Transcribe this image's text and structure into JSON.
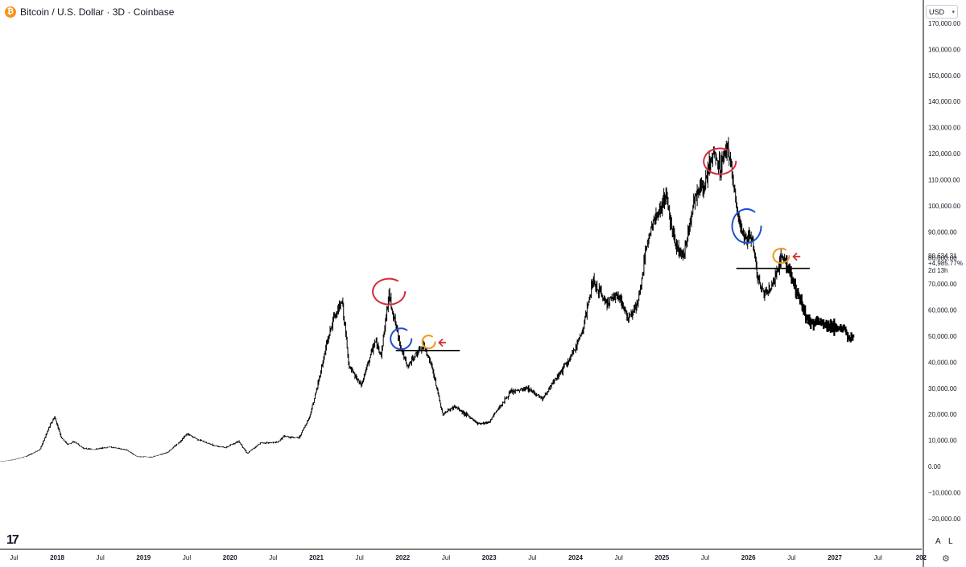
{
  "header": {
    "symbol_icon": "bitcoin-icon",
    "title": "Bitcoin / U.S. Dollar · 3D · Coinbase"
  },
  "currency_select": {
    "value": "USD",
    "icon": "chevron-down-icon"
  },
  "price_readout": {
    "price": "80,634.31",
    "change": "+4,985.77%",
    "countdown": "2d 13h"
  },
  "buttons": {
    "auto_label": "A",
    "log_label": "L",
    "settings_icon": "gear-icon",
    "logo_text": "17"
  },
  "colors": {
    "candles": "#000000",
    "red_annotation": "#d62d3a",
    "blue_annotation": "#1f4fd1",
    "orange_annotation": "#f0961e",
    "axis_line": "#000000"
  },
  "chart_data": {
    "type": "line",
    "title": "",
    "xlabel": "",
    "ylabel": "",
    "ylim": [
      -25000,
      175000
    ],
    "xlim": [
      2017.32,
      2028.0
    ],
    "y_ticks": [
      "170,000.00",
      "160,000.00",
      "150,000.00",
      "140,000.00",
      "130,000.00",
      "120,000.00",
      "110,000.00",
      "100,000.00",
      "90,000.00",
      "80,000.00",
      "70,000.00",
      "60,000.00",
      "50,000.00",
      "40,000.00",
      "30,000.00",
      "20,000.00",
      "10,000.00",
      "0.00",
      "−10,000.00",
      "−20,000.00"
    ],
    "y_tick_values": [
      170000,
      160000,
      150000,
      140000,
      130000,
      120000,
      110000,
      100000,
      90000,
      80000,
      70000,
      60000,
      50000,
      40000,
      30000,
      20000,
      10000,
      0,
      -10000,
      -20000
    ],
    "x_ticks": [
      {
        "t": 2017.5,
        "label": "Jul",
        "year": false
      },
      {
        "t": 2018.0,
        "label": "2018",
        "year": true
      },
      {
        "t": 2018.5,
        "label": "Jul",
        "year": false
      },
      {
        "t": 2019.0,
        "label": "2019",
        "year": true
      },
      {
        "t": 2019.5,
        "label": "Jul",
        "year": false
      },
      {
        "t": 2020.0,
        "label": "2020",
        "year": true
      },
      {
        "t": 2020.5,
        "label": "Jul",
        "year": false
      },
      {
        "t": 2021.0,
        "label": "2021",
        "year": true
      },
      {
        "t": 2021.5,
        "label": "Jul",
        "year": false
      },
      {
        "t": 2022.0,
        "label": "2022",
        "year": true
      },
      {
        "t": 2022.5,
        "label": "Jul",
        "year": false
      },
      {
        "t": 2023.0,
        "label": "2023",
        "year": true
      },
      {
        "t": 2023.5,
        "label": "Jul",
        "year": false
      },
      {
        "t": 2024.0,
        "label": "2024",
        "year": true
      },
      {
        "t": 2024.5,
        "label": "Jul",
        "year": false
      },
      {
        "t": 2025.0,
        "label": "2025",
        "year": true
      },
      {
        "t": 2025.5,
        "label": "Jul",
        "year": false
      },
      {
        "t": 2026.0,
        "label": "2026",
        "year": true
      },
      {
        "t": 2026.5,
        "label": "Jul",
        "year": false
      },
      {
        "t": 2027.0,
        "label": "2027",
        "year": true
      },
      {
        "t": 2027.5,
        "label": "Jul",
        "year": false
      },
      {
        "t": 2028.0,
        "label": "202",
        "year": true
      }
    ],
    "series": [
      {
        "values": [
          {
            "t": 2017.32,
            "y": 1800
          },
          {
            "t": 2017.5,
            "y": 2600
          },
          {
            "t": 2017.65,
            "y": 4000
          },
          {
            "t": 2017.8,
            "y": 6500
          },
          {
            "t": 2017.92,
            "y": 16000
          },
          {
            "t": 2017.97,
            "y": 19000
          },
          {
            "t": 2018.05,
            "y": 11000
          },
          {
            "t": 2018.12,
            "y": 8500
          },
          {
            "t": 2018.2,
            "y": 9500
          },
          {
            "t": 2018.3,
            "y": 7000
          },
          {
            "t": 2018.42,
            "y": 6500
          },
          {
            "t": 2018.6,
            "y": 7500
          },
          {
            "t": 2018.8,
            "y": 6400
          },
          {
            "t": 2018.92,
            "y": 3800
          },
          {
            "t": 2019.1,
            "y": 3600
          },
          {
            "t": 2019.28,
            "y": 5500
          },
          {
            "t": 2019.42,
            "y": 9500
          },
          {
            "t": 2019.5,
            "y": 12500
          },
          {
            "t": 2019.62,
            "y": 10500
          },
          {
            "t": 2019.8,
            "y": 8200
          },
          {
            "t": 2019.95,
            "y": 7200
          },
          {
            "t": 2020.1,
            "y": 9800
          },
          {
            "t": 2020.2,
            "y": 5000
          },
          {
            "t": 2020.35,
            "y": 9000
          },
          {
            "t": 2020.55,
            "y": 9200
          },
          {
            "t": 2020.62,
            "y": 11500
          },
          {
            "t": 2020.8,
            "y": 11000
          },
          {
            "t": 2020.92,
            "y": 19000
          },
          {
            "t": 2021.0,
            "y": 29000
          },
          {
            "t": 2021.12,
            "y": 47000
          },
          {
            "t": 2021.2,
            "y": 57000
          },
          {
            "t": 2021.3,
            "y": 63000
          },
          {
            "t": 2021.38,
            "y": 38000
          },
          {
            "t": 2021.52,
            "y": 31000
          },
          {
            "t": 2021.6,
            "y": 40000
          },
          {
            "t": 2021.68,
            "y": 48000
          },
          {
            "t": 2021.75,
            "y": 43000
          },
          {
            "t": 2021.84,
            "y": 66000
          },
          {
            "t": 2021.9,
            "y": 57000
          },
          {
            "t": 2021.97,
            "y": 47000
          },
          {
            "t": 2022.05,
            "y": 38000
          },
          {
            "t": 2022.15,
            "y": 43000
          },
          {
            "t": 2022.25,
            "y": 46000
          },
          {
            "t": 2022.33,
            "y": 39000
          },
          {
            "t": 2022.4,
            "y": 29000
          },
          {
            "t": 2022.46,
            "y": 20000
          },
          {
            "t": 2022.6,
            "y": 23000
          },
          {
            "t": 2022.75,
            "y": 19500
          },
          {
            "t": 2022.87,
            "y": 16500
          },
          {
            "t": 2023.0,
            "y": 17000
          },
          {
            "t": 2023.1,
            "y": 22000
          },
          {
            "t": 2023.25,
            "y": 28500
          },
          {
            "t": 2023.45,
            "y": 30000
          },
          {
            "t": 2023.62,
            "y": 26000
          },
          {
            "t": 2023.8,
            "y": 35000
          },
          {
            "t": 2023.95,
            "y": 42000
          },
          {
            "t": 2024.08,
            "y": 52000
          },
          {
            "t": 2024.2,
            "y": 71000
          },
          {
            "t": 2024.35,
            "y": 63000
          },
          {
            "t": 2024.5,
            "y": 66000
          },
          {
            "t": 2024.6,
            "y": 57000
          },
          {
            "t": 2024.72,
            "y": 62000
          },
          {
            "t": 2024.85,
            "y": 90000
          },
          {
            "t": 2024.95,
            "y": 97000
          },
          {
            "t": 2025.05,
            "y": 104000
          },
          {
            "t": 2025.15,
            "y": 86000
          },
          {
            "t": 2025.25,
            "y": 80000
          },
          {
            "t": 2025.38,
            "y": 104000
          },
          {
            "t": 2025.5,
            "y": 108000
          },
          {
            "t": 2025.58,
            "y": 120000
          },
          {
            "t": 2025.68,
            "y": 115000
          },
          {
            "t": 2025.76,
            "y": 124000
          },
          {
            "t": 2025.82,
            "y": 110000
          },
          {
            "t": 2025.88,
            "y": 95000
          },
          {
            "t": 2025.95,
            "y": 87000
          },
          {
            "t": 2026.05,
            "y": 88000
          },
          {
            "t": 2026.1,
            "y": 73000
          },
          {
            "t": 2026.18,
            "y": 66000
          },
          {
            "t": 2026.28,
            "y": 70000
          },
          {
            "t": 2026.37,
            "y": 79000
          },
          {
            "t": 2026.42,
            "y": 80600
          },
          {
            "t": 2026.5,
            "y": 72000
          },
          {
            "t": 2026.6,
            "y": 64000
          },
          {
            "t": 2026.7,
            "y": 55000
          },
          {
            "t": 2026.8,
            "y": 56000
          },
          {
            "t": 2026.9,
            "y": 54500
          },
          {
            "t": 2027.0,
            "y": 53500
          },
          {
            "t": 2027.1,
            "y": 52500
          },
          {
            "t": 2027.17,
            "y": 49000
          },
          {
            "t": 2027.22,
            "y": 50000
          }
        ]
      }
    ],
    "annotations": [
      {
        "kind": "circle",
        "color": "red",
        "t": 2021.84,
        "y": 66500
      },
      {
        "kind": "circle",
        "color": "blue",
        "t": 2021.98,
        "y": 48500
      },
      {
        "kind": "circle",
        "color": "orange",
        "t": 2022.3,
        "y": 47500
      },
      {
        "kind": "arrow",
        "color": "red",
        "t": 2022.42,
        "y": 47500
      },
      {
        "kind": "hline",
        "t_start": 2021.92,
        "t_end": 2022.66,
        "y": 44500
      },
      {
        "kind": "circle",
        "color": "red",
        "t": 2025.67,
        "y": 116500
      },
      {
        "kind": "circle",
        "color": "blue",
        "t": 2025.98,
        "y": 91500
      },
      {
        "kind": "circle",
        "color": "orange",
        "t": 2026.38,
        "y": 80500
      },
      {
        "kind": "arrow",
        "color": "red",
        "t": 2026.52,
        "y": 80500
      },
      {
        "kind": "hline",
        "t_start": 2025.86,
        "t_end": 2026.71,
        "y": 76000
      }
    ]
  }
}
